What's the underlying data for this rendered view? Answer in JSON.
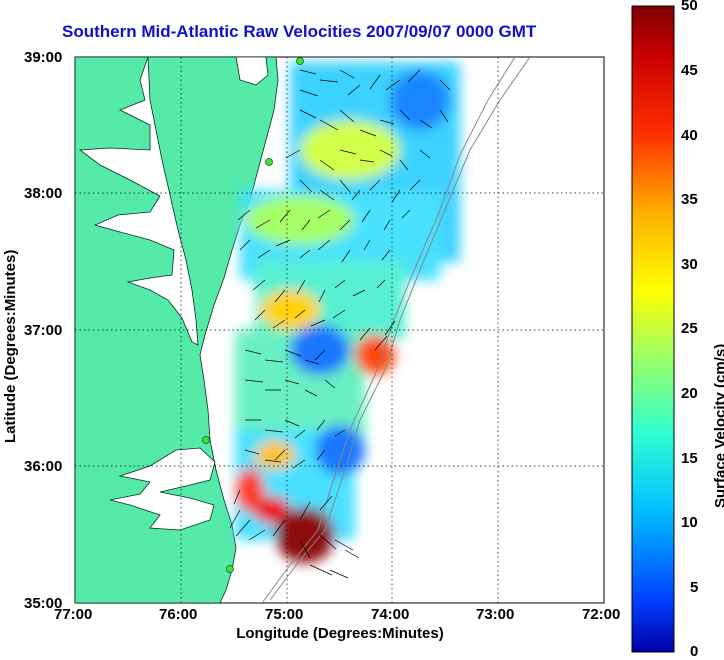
{
  "title": "Southern Mid-Atlantic Raw Velocities 2007/09/07 0000 GMT",
  "axes": {
    "xlabel": "Longitude (Degrees:Minutes)",
    "ylabel": "Latitude (Degrees:Minutes)",
    "x_ticks": [
      "77:00",
      "76:00",
      "75:00",
      "74:00",
      "73:00",
      "72:00"
    ],
    "y_ticks": [
      "39:00",
      "38:00",
      "37:00",
      "36:00",
      "35:00"
    ],
    "grid": "dotted"
  },
  "colorbar": {
    "label": "Surface Velocity (cm/s)",
    "ticks": [
      "50",
      "45",
      "40",
      "35",
      "30",
      "25",
      "20",
      "15",
      "10",
      "5",
      "0"
    ],
    "range": [
      0,
      50
    ],
    "colormap": "jet"
  },
  "colors": {
    "land": "#55eaa8",
    "water": "#ffffff",
    "title": "#1010d0",
    "vectors": "#000000",
    "station": "#44dd44"
  }
}
